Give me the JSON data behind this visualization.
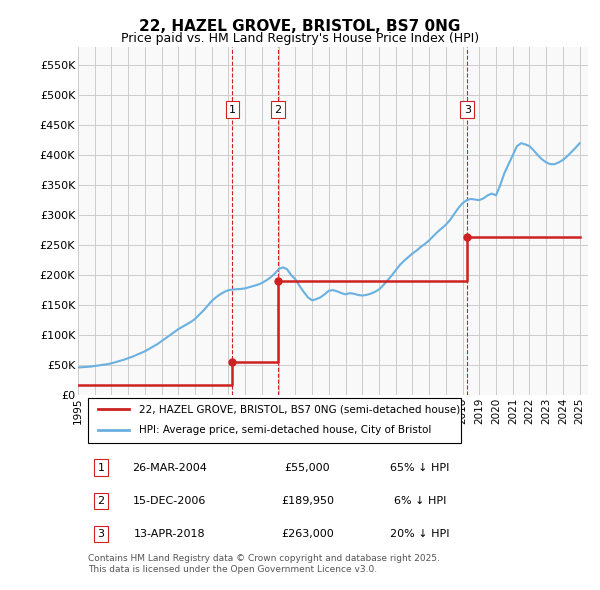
{
  "title": "22, HAZEL GROVE, BRISTOL, BS7 0NG",
  "subtitle": "Price paid vs. HM Land Registry's House Price Index (HPI)",
  "hpi_color": "#6ab0e0",
  "price_color": "#cc2222",
  "vline_color": "#cc2222",
  "background_color": "#f9f9f9",
  "grid_color": "#cccccc",
  "ylim": [
    0,
    580000
  ],
  "yticks": [
    0,
    50000,
    100000,
    150000,
    200000,
    250000,
    300000,
    350000,
    400000,
    450000,
    500000,
    550000
  ],
  "ytick_labels": [
    "£0",
    "£50K",
    "£100K",
    "£150K",
    "£200K",
    "£250K",
    "£300K",
    "£350K",
    "£400K",
    "£450K",
    "£500K",
    "£550K"
  ],
  "xlim_start": 1995.0,
  "xlim_end": 2025.5,
  "xticks": [
    1995,
    1996,
    1997,
    1998,
    1999,
    2000,
    2001,
    2002,
    2003,
    2004,
    2005,
    2006,
    2007,
    2008,
    2009,
    2010,
    2011,
    2012,
    2013,
    2014,
    2015,
    2016,
    2017,
    2018,
    2019,
    2020,
    2021,
    2022,
    2023,
    2024,
    2025
  ],
  "sale_dates_decimal": [
    2004.23,
    2006.96,
    2018.28
  ],
  "sale_prices": [
    55000,
    189950,
    263000
  ],
  "sale_labels": [
    "1",
    "2",
    "3"
  ],
  "legend_entries": [
    "22, HAZEL GROVE, BRISTOL, BS7 0NG (semi-detached house)",
    "HPI: Average price, semi-detached house, City of Bristol"
  ],
  "table_rows": [
    [
      "1",
      "26-MAR-2004",
      "£55,000",
      "65% ↓ HPI"
    ],
    [
      "2",
      "15-DEC-2006",
      "£189,950",
      "6% ↓ HPI"
    ],
    [
      "3",
      "13-APR-2018",
      "£263,000",
      "20% ↓ HPI"
    ]
  ],
  "footer_text": "Contains HM Land Registry data © Crown copyright and database right 2025.\nThis data is licensed under the Open Government Licence v3.0.",
  "hpi_data_x": [
    1995.0,
    1995.25,
    1995.5,
    1995.75,
    1996.0,
    1996.25,
    1996.5,
    1996.75,
    1997.0,
    1997.25,
    1997.5,
    1997.75,
    1998.0,
    1998.25,
    1998.5,
    1998.75,
    1999.0,
    1999.25,
    1999.5,
    1999.75,
    2000.0,
    2000.25,
    2000.5,
    2000.75,
    2001.0,
    2001.25,
    2001.5,
    2001.75,
    2002.0,
    2002.25,
    2002.5,
    2002.75,
    2003.0,
    2003.25,
    2003.5,
    2003.75,
    2004.0,
    2004.25,
    2004.5,
    2004.75,
    2005.0,
    2005.25,
    2005.5,
    2005.75,
    2006.0,
    2006.25,
    2006.5,
    2006.75,
    2007.0,
    2007.25,
    2007.5,
    2007.75,
    2008.0,
    2008.25,
    2008.5,
    2008.75,
    2009.0,
    2009.25,
    2009.5,
    2009.75,
    2010.0,
    2010.25,
    2010.5,
    2010.75,
    2011.0,
    2011.25,
    2011.5,
    2011.75,
    2012.0,
    2012.25,
    2012.5,
    2012.75,
    2013.0,
    2013.25,
    2013.5,
    2013.75,
    2014.0,
    2014.25,
    2014.5,
    2014.75,
    2015.0,
    2015.25,
    2015.5,
    2015.75,
    2016.0,
    2016.25,
    2016.5,
    2016.75,
    2017.0,
    2017.25,
    2017.5,
    2017.75,
    2018.0,
    2018.25,
    2018.5,
    2018.75,
    2019.0,
    2019.25,
    2019.5,
    2019.75,
    2020.0,
    2020.25,
    2020.5,
    2020.75,
    2021.0,
    2021.25,
    2021.5,
    2021.75,
    2022.0,
    2022.25,
    2022.5,
    2022.75,
    2023.0,
    2023.25,
    2023.5,
    2023.75,
    2024.0,
    2024.25,
    2024.5,
    2024.75,
    2025.0
  ],
  "hpi_data_y": [
    46000,
    46500,
    47000,
    47500,
    48500,
    49500,
    50500,
    51500,
    53000,
    55000,
    57000,
    59000,
    61500,
    64000,
    67000,
    70000,
    73000,
    77000,
    81000,
    85000,
    90000,
    95000,
    100000,
    105000,
    110000,
    114000,
    118000,
    122000,
    127000,
    134000,
    141000,
    149000,
    157000,
    163000,
    168000,
    172000,
    175000,
    176000,
    176500,
    177000,
    178000,
    180000,
    182000,
    184000,
    187000,
    191000,
    196000,
    202000,
    210000,
    213000,
    210000,
    200000,
    193000,
    182000,
    172000,
    163000,
    158000,
    160000,
    163000,
    168000,
    174000,
    175000,
    173000,
    170000,
    168000,
    170000,
    169000,
    167000,
    166000,
    167000,
    169000,
    172000,
    176000,
    183000,
    191000,
    199000,
    208000,
    217000,
    224000,
    230000,
    236000,
    241000,
    247000,
    252000,
    258000,
    265000,
    272000,
    278000,
    284000,
    292000,
    302000,
    312000,
    320000,
    325000,
    327000,
    326000,
    325000,
    328000,
    333000,
    336000,
    333000,
    350000,
    370000,
    385000,
    400000,
    415000,
    420000,
    418000,
    415000,
    408000,
    400000,
    393000,
    388000,
    385000,
    385000,
    388000,
    392000,
    398000,
    405000,
    412000,
    420000
  ],
  "price_line_x": [
    1995.0,
    2004.23,
    2004.23,
    2006.96,
    2006.96,
    2018.28,
    2018.28,
    2025.0
  ],
  "price_line_y": [
    17000,
    17000,
    55000,
    55000,
    189950,
    189950,
    263000,
    263000
  ]
}
